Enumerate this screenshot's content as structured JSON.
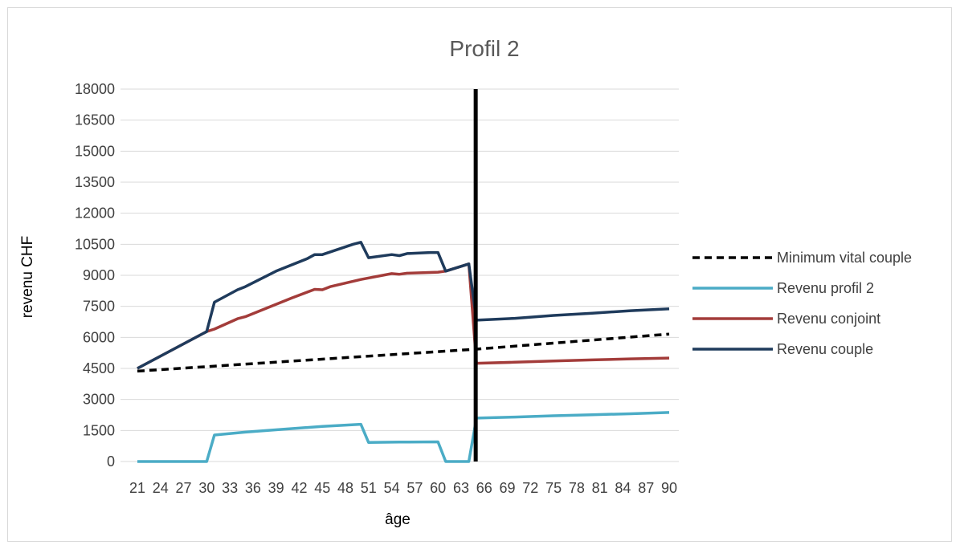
{
  "chart_data": {
    "type": "line",
    "title": "Profil 2",
    "xlabel": "âge",
    "ylabel": "revenu CHF",
    "ylim": [
      0,
      18000
    ],
    "yticks": [
      0,
      1500,
      3000,
      4500,
      6000,
      7500,
      9000,
      10500,
      12000,
      13500,
      15000,
      16500,
      18000
    ],
    "xlim": [
      21,
      90
    ],
    "xticks": [
      21,
      24,
      27,
      30,
      33,
      36,
      39,
      42,
      45,
      48,
      51,
      54,
      57,
      60,
      63,
      66,
      69,
      72,
      75,
      78,
      81,
      84,
      87,
      90
    ],
    "grid": true,
    "legend_position": "right",
    "reference_line": {
      "x": 65,
      "color": "#000000"
    },
    "series": [
      {
        "name": "Minimum vital couple",
        "color": "#000000",
        "style": "dashed",
        "points": [
          [
            21,
            4370
          ],
          [
            65,
            5430
          ],
          [
            90,
            6160
          ]
        ]
      },
      {
        "name": "Revenu profil 2",
        "color": "#4bacc6",
        "style": "solid",
        "points": [
          [
            21,
            0
          ],
          [
            30,
            0
          ],
          [
            31,
            1280
          ],
          [
            35,
            1420
          ],
          [
            40,
            1560
          ],
          [
            45,
            1700
          ],
          [
            50,
            1800
          ],
          [
            51,
            920
          ],
          [
            55,
            940
          ],
          [
            60,
            950
          ],
          [
            61,
            0
          ],
          [
            64,
            0
          ],
          [
            65,
            2100
          ],
          [
            70,
            2150
          ],
          [
            75,
            2210
          ],
          [
            80,
            2260
          ],
          [
            85,
            2310
          ],
          [
            90,
            2370
          ]
        ]
      },
      {
        "name": "Revenu conjoint",
        "color": "#a33c3a",
        "style": "solid",
        "points": [
          [
            21,
            4500
          ],
          [
            30,
            6280
          ],
          [
            31,
            6400
          ],
          [
            34,
            6900
          ],
          [
            35,
            7000
          ],
          [
            38,
            7450
          ],
          [
            41,
            7900
          ],
          [
            44,
            8320
          ],
          [
            45,
            8300
          ],
          [
            46,
            8450
          ],
          [
            50,
            8800
          ],
          [
            54,
            9080
          ],
          [
            55,
            9050
          ],
          [
            56,
            9100
          ],
          [
            60,
            9150
          ],
          [
            61,
            9200
          ],
          [
            64,
            9550
          ],
          [
            65,
            4750
          ],
          [
            70,
            4800
          ],
          [
            75,
            4860
          ],
          [
            80,
            4910
          ],
          [
            85,
            4960
          ],
          [
            90,
            5000
          ]
        ]
      },
      {
        "name": "Revenu couple",
        "color": "#1f3b5c",
        "style": "solid",
        "points": [
          [
            21,
            4500
          ],
          [
            30,
            6280
          ],
          [
            31,
            7700
          ],
          [
            34,
            8300
          ],
          [
            35,
            8450
          ],
          [
            39,
            9200
          ],
          [
            43,
            9800
          ],
          [
            44,
            10000
          ],
          [
            45,
            10000
          ],
          [
            49,
            10500
          ],
          [
            50,
            10600
          ],
          [
            51,
            9850
          ],
          [
            54,
            10000
          ],
          [
            55,
            9950
          ],
          [
            56,
            10050
          ],
          [
            59,
            10100
          ],
          [
            60,
            10100
          ],
          [
            61,
            9200
          ],
          [
            64,
            9550
          ],
          [
            65,
            6830
          ],
          [
            70,
            6920
          ],
          [
            75,
            7060
          ],
          [
            80,
            7170
          ],
          [
            85,
            7290
          ],
          [
            90,
            7380
          ]
        ]
      }
    ]
  }
}
